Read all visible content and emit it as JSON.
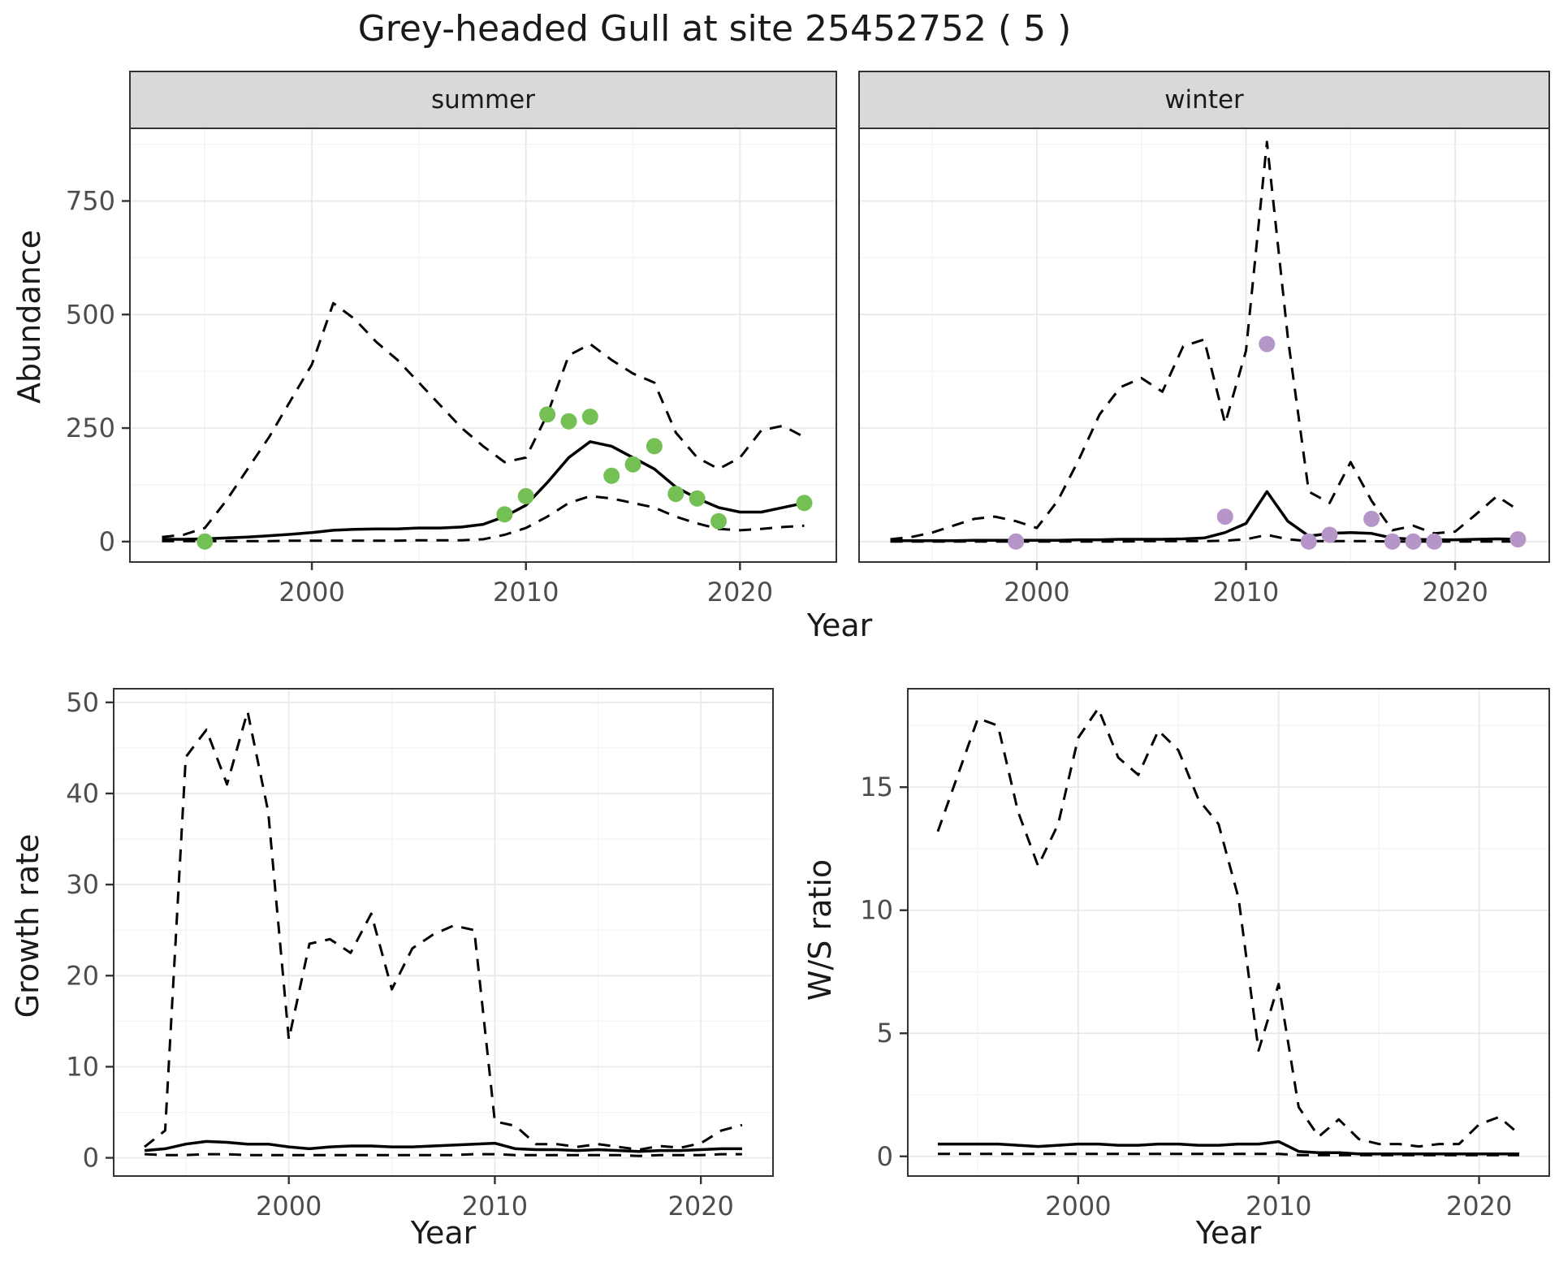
{
  "title": "Grey-headed Gull at site 25452752 ( 5 )",
  "colors": {
    "summer_points": "#74c055",
    "winter_points": "#b696c8",
    "line": "#000000",
    "strip_bg": "#d9d9d9",
    "grid_major": "#e8e8e8",
    "grid_minor": "#f4f4f4",
    "panel_border": "#333333",
    "tick_text": "#4d4d4d"
  },
  "chart_data": [
    {
      "id": "abundance-summer",
      "type": "line",
      "facet": "summer",
      "xlabel": "Year",
      "ylabel": "Abundance",
      "xlim": [
        1991.5,
        2024.5
      ],
      "ylim": [
        -45,
        910
      ],
      "xticks": [
        2000,
        2010,
        2020
      ],
      "yticks": [
        0,
        250,
        500,
        750
      ],
      "grid": true,
      "legend": "none",
      "series": [
        {
          "name": "upper_ci",
          "style": "dashed",
          "x": [
            1993,
            1994,
            1995,
            1996,
            1997,
            1998,
            1999,
            2000,
            2001,
            2002,
            2003,
            2004,
            2005,
            2006,
            2007,
            2008,
            2009,
            2010,
            2011,
            2012,
            2013,
            2014,
            2015,
            2016,
            2017,
            2018,
            2019,
            2020,
            2021,
            2022,
            2023
          ],
          "y": [
            10,
            15,
            30,
            90,
            160,
            230,
            310,
            390,
            525,
            490,
            440,
            400,
            350,
            300,
            250,
            210,
            175,
            185,
            280,
            410,
            435,
            400,
            370,
            350,
            240,
            185,
            160,
            185,
            245,
            255,
            230
          ]
        },
        {
          "name": "median",
          "style": "solid",
          "x": [
            1993,
            1994,
            1995,
            1996,
            1997,
            1998,
            1999,
            2000,
            2001,
            2002,
            2003,
            2004,
            2005,
            2006,
            2007,
            2008,
            2009,
            2010,
            2011,
            2012,
            2013,
            2014,
            2015,
            2016,
            2017,
            2018,
            2019,
            2020,
            2021,
            2022,
            2023
          ],
          "y": [
            5,
            5,
            6,
            8,
            10,
            13,
            16,
            20,
            25,
            27,
            28,
            28,
            30,
            30,
            32,
            38,
            55,
            80,
            130,
            185,
            220,
            210,
            185,
            160,
            120,
            95,
            75,
            65,
            65,
            75,
            85
          ]
        },
        {
          "name": "lower_ci",
          "style": "dashed",
          "x": [
            1993,
            1994,
            1995,
            1996,
            1997,
            1998,
            1999,
            2000,
            2001,
            2002,
            2003,
            2004,
            2005,
            2006,
            2007,
            2008,
            2009,
            2010,
            2011,
            2012,
            2013,
            2014,
            2015,
            2016,
            2017,
            2018,
            2019,
            2020,
            2021,
            2022,
            2023
          ],
          "y": [
            1,
            1,
            1,
            1,
            1,
            1,
            2,
            2,
            2,
            2,
            2,
            2,
            3,
            3,
            3,
            5,
            15,
            30,
            55,
            85,
            100,
            95,
            85,
            75,
            55,
            40,
            28,
            25,
            28,
            32,
            35
          ]
        }
      ],
      "points": {
        "name": "observed_counts_summer",
        "x": [
          1995,
          2009,
          2010,
          2011,
          2012,
          2013,
          2014,
          2015,
          2016,
          2017,
          2018,
          2019,
          2023
        ],
        "y": [
          0,
          60,
          100,
          280,
          265,
          275,
          145,
          170,
          210,
          105,
          95,
          45,
          85
        ]
      }
    },
    {
      "id": "abundance-winter",
      "type": "line",
      "facet": "winter",
      "xlabel": "Year",
      "ylabel": "Abundance",
      "xlim": [
        1991.5,
        2024.5
      ],
      "ylim": [
        -45,
        910
      ],
      "xticks": [
        2000,
        2010,
        2020
      ],
      "yticks": [
        0,
        250,
        500,
        750
      ],
      "grid": true,
      "legend": "none",
      "series": [
        {
          "name": "upper_ci",
          "style": "dashed",
          "x": [
            1993,
            1994,
            1995,
            1996,
            1997,
            1998,
            1999,
            2000,
            2001,
            2002,
            2003,
            2004,
            2005,
            2006,
            2007,
            2008,
            2009,
            2010,
            2011,
            2012,
            2013,
            2014,
            2015,
            2016,
            2017,
            2018,
            2019,
            2020,
            2021,
            2022,
            2023
          ],
          "y": [
            5,
            10,
            20,
            35,
            50,
            55,
            45,
            30,
            90,
            180,
            280,
            340,
            360,
            330,
            430,
            445,
            260,
            420,
            880,
            450,
            110,
            85,
            175,
            90,
            25,
            35,
            18,
            22,
            60,
            100,
            70
          ]
        },
        {
          "name": "median",
          "style": "solid",
          "x": [
            1993,
            1994,
            1995,
            1996,
            1997,
            1998,
            1999,
            2000,
            2001,
            2002,
            2003,
            2004,
            2005,
            2006,
            2007,
            2008,
            2009,
            2010,
            2011,
            2012,
            2013,
            2014,
            2015,
            2016,
            2017,
            2018,
            2019,
            2020,
            2021,
            2022,
            2023
          ],
          "y": [
            2,
            2,
            2,
            2,
            3,
            3,
            3,
            3,
            3,
            4,
            4,
            5,
            5,
            5,
            6,
            8,
            20,
            40,
            110,
            45,
            12,
            18,
            20,
            18,
            8,
            5,
            4,
            4,
            5,
            6,
            5
          ]
        },
        {
          "name": "lower_ci",
          "style": "dashed",
          "x": [
            1993,
            1994,
            1995,
            1996,
            1997,
            1998,
            1999,
            2000,
            2001,
            2002,
            2003,
            2004,
            2005,
            2006,
            2007,
            2008,
            2009,
            2010,
            2011,
            2012,
            2013,
            2014,
            2015,
            2016,
            2017,
            2018,
            2019,
            2020,
            2021,
            2022,
            2023
          ],
          "y": [
            0,
            0,
            0,
            0,
            0,
            0,
            0,
            0,
            0,
            0,
            0,
            0,
            1,
            1,
            1,
            1,
            2,
            5,
            15,
            5,
            1,
            1,
            1,
            1,
            0,
            0,
            0,
            0,
            0,
            0,
            0
          ]
        }
      ],
      "points": {
        "name": "observed_counts_winter",
        "x": [
          1999,
          2009,
          2011,
          2013,
          2014,
          2016,
          2017,
          2018,
          2019,
          2023
        ],
        "y": [
          0,
          55,
          435,
          0,
          15,
          50,
          0,
          0,
          0,
          5
        ]
      }
    },
    {
      "id": "growth-rate",
      "type": "line",
      "facet": "",
      "xlabel": "Year",
      "ylabel": "Growth rate",
      "xlim": [
        1991.5,
        2023.5
      ],
      "ylim": [
        -2,
        51.5
      ],
      "xticks": [
        2000,
        2010,
        2020
      ],
      "yticks": [
        0,
        10,
        20,
        30,
        40,
        50
      ],
      "grid": true,
      "legend": "none",
      "series": [
        {
          "name": "upper_ci",
          "style": "dashed",
          "x": [
            1993,
            1994,
            1995,
            1996,
            1997,
            1998,
            1999,
            2000,
            2001,
            2002,
            2003,
            2004,
            2005,
            2006,
            2007,
            2008,
            2009,
            2010,
            2011,
            2012,
            2013,
            2014,
            2015,
            2016,
            2017,
            2018,
            2019,
            2020,
            2021,
            2022
          ],
          "y": [
            1.2,
            3,
            44,
            47,
            41,
            49,
            38,
            13,
            23.5,
            24,
            22.5,
            26.8,
            18.5,
            23,
            24.5,
            25.5,
            25,
            4,
            3.5,
            1.5,
            1.5,
            1.2,
            1.5,
            1.2,
            0.9,
            1.3,
            1.1,
            1.6,
            3,
            3.6
          ]
        },
        {
          "name": "median",
          "style": "solid",
          "x": [
            1993,
            1994,
            1995,
            1996,
            1997,
            1998,
            1999,
            2000,
            2001,
            2002,
            2003,
            2004,
            2005,
            2006,
            2007,
            2008,
            2009,
            2010,
            2011,
            2012,
            2013,
            2014,
            2015,
            2016,
            2017,
            2018,
            2019,
            2020,
            2021,
            2022
          ],
          "y": [
            0.8,
            1,
            1.5,
            1.8,
            1.7,
            1.5,
            1.5,
            1.2,
            1,
            1.2,
            1.3,
            1.3,
            1.2,
            1.2,
            1.3,
            1.4,
            1.5,
            1.6,
            1,
            0.9,
            0.9,
            0.8,
            0.9,
            0.8,
            0.7,
            0.8,
            0.8,
            0.9,
            1,
            1
          ]
        },
        {
          "name": "lower_ci",
          "style": "dashed",
          "x": [
            1993,
            1994,
            1995,
            1996,
            1997,
            1998,
            1999,
            2000,
            2001,
            2002,
            2003,
            2004,
            2005,
            2006,
            2007,
            2008,
            2009,
            2010,
            2011,
            2012,
            2013,
            2014,
            2015,
            2016,
            2017,
            2018,
            2019,
            2020,
            2021,
            2022
          ],
          "y": [
            0.4,
            0.3,
            0.3,
            0.4,
            0.4,
            0.3,
            0.3,
            0.3,
            0.3,
            0.3,
            0.3,
            0.3,
            0.3,
            0.3,
            0.3,
            0.3,
            0.4,
            0.4,
            0.3,
            0.3,
            0.3,
            0.3,
            0.3,
            0.3,
            0.2,
            0.3,
            0.3,
            0.3,
            0.4,
            0.4
          ]
        }
      ],
      "points": null
    },
    {
      "id": "ws-ratio",
      "type": "line",
      "facet": "",
      "xlabel": "Year",
      "ylabel": "W/S ratio",
      "xlim": [
        1991.5,
        2023.5
      ],
      "ylim": [
        -0.8,
        19
      ],
      "xticks": [
        2000,
        2010,
        2020
      ],
      "yticks": [
        0,
        5,
        10,
        15
      ],
      "grid": true,
      "legend": "none",
      "series": [
        {
          "name": "upper_ci",
          "style": "dashed",
          "x": [
            1993,
            1994,
            1995,
            1996,
            1997,
            1998,
            1999,
            2000,
            2001,
            2002,
            2003,
            2004,
            2005,
            2006,
            2007,
            2008,
            2009,
            2010,
            2011,
            2012,
            2013,
            2014,
            2015,
            2016,
            2017,
            2018,
            2019,
            2020,
            2021,
            2022
          ],
          "y": [
            13.2,
            15.5,
            17.8,
            17.5,
            14,
            11.8,
            13.5,
            17,
            18.2,
            16.2,
            15.5,
            17.3,
            16.5,
            14.5,
            13.5,
            10.5,
            4.3,
            7,
            2,
            0.8,
            1.5,
            0.7,
            0.5,
            0.5,
            0.4,
            0.5,
            0.5,
            1.3,
            1.6,
            0.9
          ]
        },
        {
          "name": "median",
          "style": "solid",
          "x": [
            1993,
            1994,
            1995,
            1996,
            1997,
            1998,
            1999,
            2000,
            2001,
            2002,
            2003,
            2004,
            2005,
            2006,
            2007,
            2008,
            2009,
            2010,
            2011,
            2012,
            2013,
            2014,
            2015,
            2016,
            2017,
            2018,
            2019,
            2020,
            2021,
            2022
          ],
          "y": [
            0.5,
            0.5,
            0.5,
            0.5,
            0.45,
            0.4,
            0.45,
            0.5,
            0.5,
            0.45,
            0.45,
            0.5,
            0.5,
            0.45,
            0.45,
            0.5,
            0.5,
            0.6,
            0.2,
            0.15,
            0.15,
            0.1,
            0.1,
            0.1,
            0.1,
            0.1,
            0.1,
            0.1,
            0.1,
            0.1
          ]
        },
        {
          "name": "lower_ci",
          "style": "dashed",
          "x": [
            1993,
            1994,
            1995,
            1996,
            1997,
            1998,
            1999,
            2000,
            2001,
            2002,
            2003,
            2004,
            2005,
            2006,
            2007,
            2008,
            2009,
            2010,
            2011,
            2012,
            2013,
            2014,
            2015,
            2016,
            2017,
            2018,
            2019,
            2020,
            2021,
            2022
          ],
          "y": [
            0.1,
            0.1,
            0.1,
            0.1,
            0.1,
            0.1,
            0.1,
            0.1,
            0.1,
            0.1,
            0.1,
            0.1,
            0.1,
            0.1,
            0.1,
            0.1,
            0.1,
            0.1,
            0.05,
            0.05,
            0.05,
            0.05,
            0.05,
            0.05,
            0.05,
            0.05,
            0.05,
            0.05,
            0.05,
            0.05
          ]
        }
      ],
      "points": null
    }
  ]
}
